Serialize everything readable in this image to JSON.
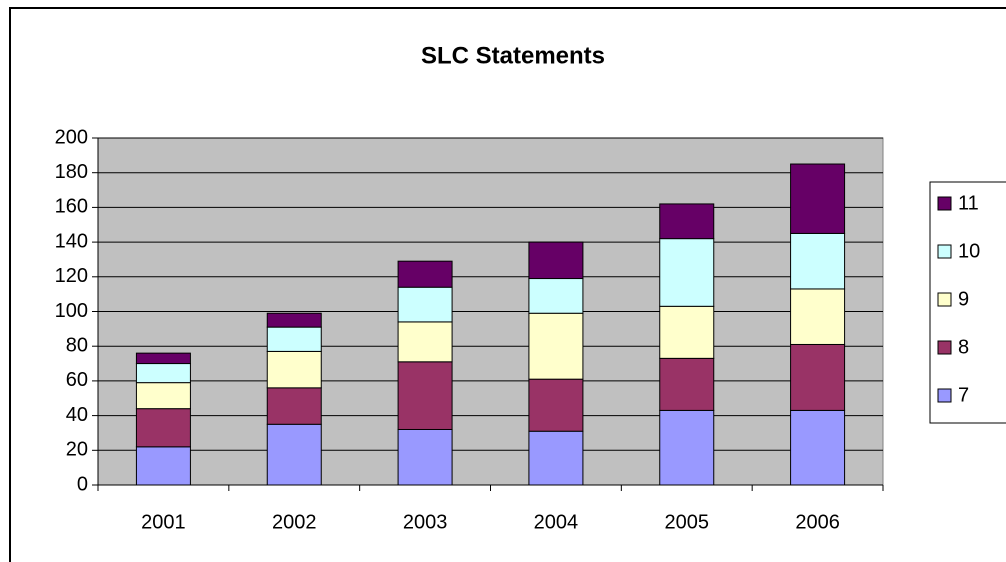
{
  "chart_data": {
    "type": "stacked_bar",
    "title": "SLC Statements",
    "categories": [
      "2001",
      "2002",
      "2003",
      "2004",
      "2005",
      "2006"
    ],
    "series": [
      {
        "name": "7",
        "color": "#9999ff",
        "values": [
          22,
          35,
          32,
          31,
          43,
          43
        ]
      },
      {
        "name": "8",
        "color": "#993366",
        "values": [
          22,
          21,
          39,
          30,
          30,
          38
        ]
      },
      {
        "name": "9",
        "color": "#ffffcc",
        "values": [
          15,
          21,
          23,
          38,
          30,
          32
        ]
      },
      {
        "name": "10",
        "color": "#ccffff",
        "values": [
          11,
          14,
          20,
          20,
          39,
          32
        ]
      },
      {
        "name": "11",
        "color": "#660066",
        "values": [
          6,
          8,
          15,
          21,
          20,
          40
        ]
      }
    ],
    "ylim": [
      0,
      200
    ],
    "yticks": [
      0,
      20,
      40,
      60,
      80,
      100,
      120,
      140,
      160,
      180,
      200
    ],
    "grid": true,
    "legend": "right"
  }
}
